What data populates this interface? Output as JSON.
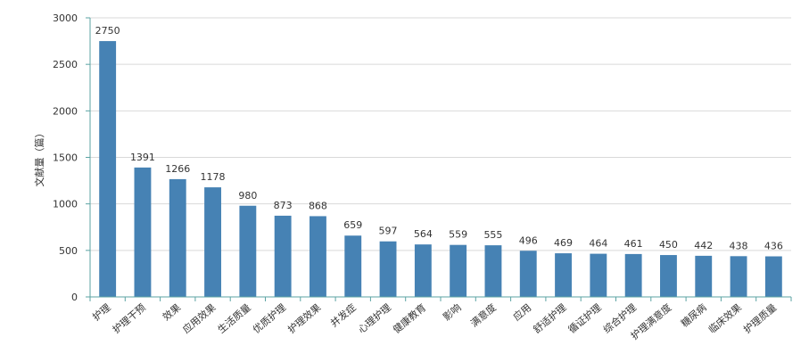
{
  "chart_data": {
    "type": "bar",
    "ylabel": "文献量（篇）",
    "xlabel": "",
    "ylim": [
      0,
      3000
    ],
    "yticks": [
      0,
      500,
      1000,
      1500,
      2000,
      2500,
      3000
    ],
    "grid": "horizontal",
    "categories": [
      "护理",
      "护理干预",
      "效果",
      "应用效果",
      "生活质量",
      "优质护理",
      "护理效果",
      "并发症",
      "心理护理",
      "健康教育",
      "影响",
      "满意度",
      "应用",
      "舒适护理",
      "循证护理",
      "综合护理",
      "护理满意度",
      "糖尿病",
      "临床效果",
      "护理质量"
    ],
    "values": [
      2750,
      1391,
      1266,
      1178,
      980,
      873,
      868,
      659,
      597,
      564,
      559,
      555,
      496,
      469,
      464,
      461,
      450,
      442,
      438,
      436
    ],
    "colors": {
      "bar": "#4682B4",
      "axis": "#5BA3A3",
      "grid": "#D9D9D9",
      "text": "#333333"
    }
  }
}
